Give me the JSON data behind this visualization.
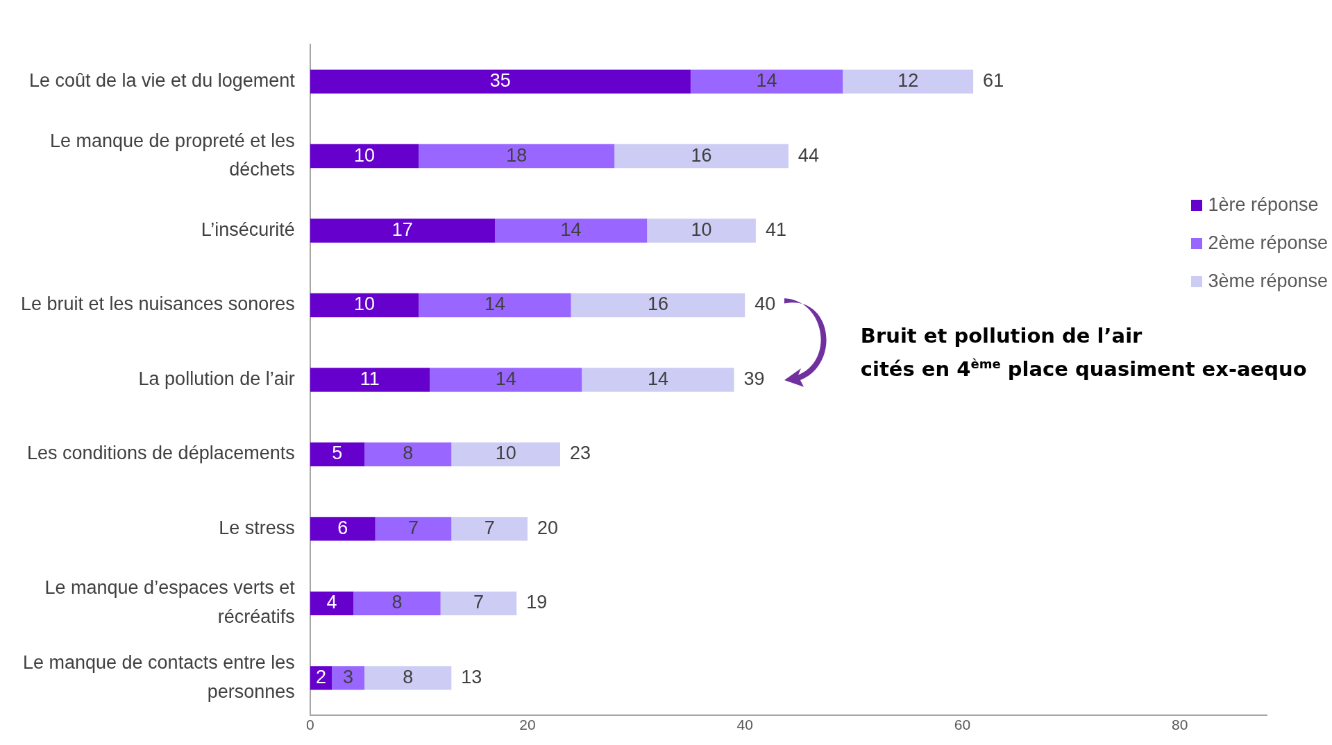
{
  "chart_data": {
    "type": "bar",
    "orientation": "horizontal",
    "stacked": true,
    "categories": [
      "Le coût de la vie et du logement",
      "Le manque de propreté et les déchets",
      "L’insécurité",
      "Le bruit et les nuisances sonores",
      "La pollution de l’air",
      "Les conditions de déplacements",
      "Le stress",
      "Le manque d’espaces verts et récréatifs",
      "Le manque de contacts entre les personnes"
    ],
    "series": [
      {
        "name": "1ère réponse",
        "color": "#6600cc",
        "values": [
          35,
          10,
          17,
          10,
          11,
          5,
          6,
          4,
          2
        ]
      },
      {
        "name": "2ème réponse",
        "color": "#9966ff",
        "values": [
          14,
          18,
          14,
          14,
          14,
          8,
          7,
          8,
          3
        ]
      },
      {
        "name": "3ème réponse",
        "color": "#ccccf5",
        "values": [
          12,
          16,
          10,
          16,
          14,
          10,
          7,
          7,
          8
        ]
      }
    ],
    "totals": [
      "61",
      "44",
      "41",
      "40",
      "39",
      "23",
      "20",
      "19",
      "13"
    ],
    "data_labels": true,
    "xlim": [
      0,
      88
    ],
    "xticks": [
      0,
      20,
      40,
      60,
      80
    ],
    "grid": false,
    "legend": "right",
    "annotations": [
      "Bruit et pollution de l’air\ncités en 4$^{ème}$ place quasiment ex-aequo"
    ]
  }
}
